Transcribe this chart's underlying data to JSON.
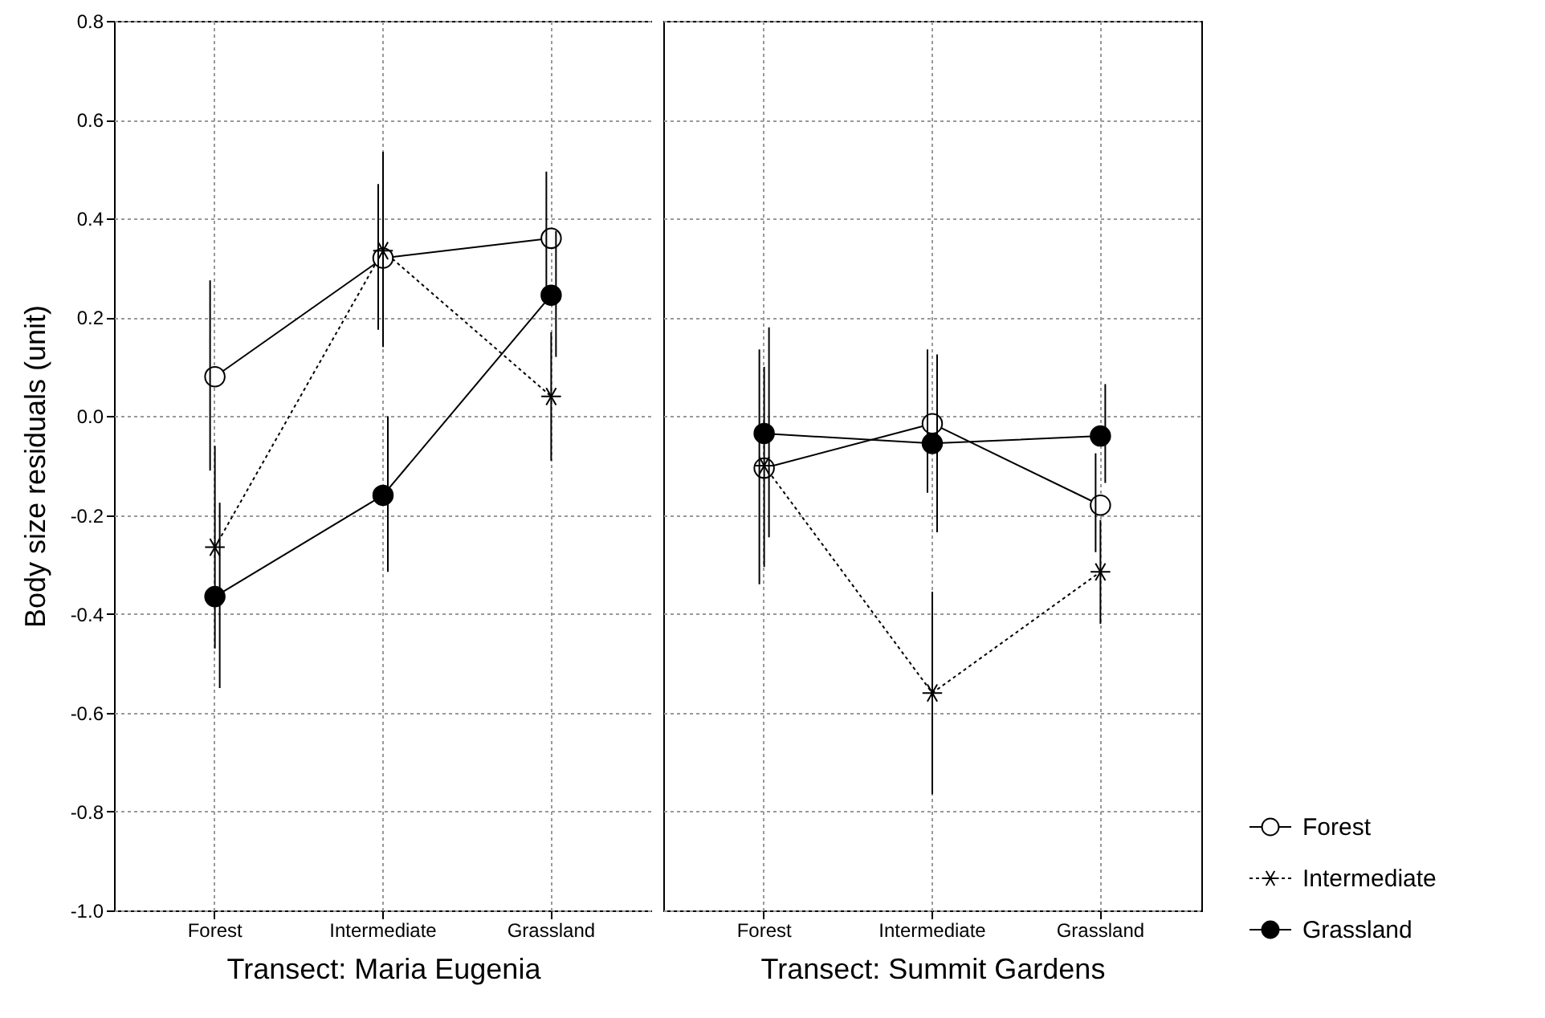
{
  "chart_data": [
    {
      "type": "line",
      "xlabel": "Transect: Maria Eugenia",
      "ylabel": "Body size residuals (unit)",
      "categories": [
        "Forest",
        "Intermediate",
        "Grassland"
      ],
      "ylim": [
        -1.0,
        0.8
      ],
      "yticks": [
        {
          "value": -1,
          "label": "-1.0"
        },
        {
          "value": -0.8,
          "label": "-0.8"
        },
        {
          "value": -0.6,
          "label": "-0.6"
        },
        {
          "value": -0.4,
          "label": "-0.4"
        },
        {
          "value": -0.2,
          "label": "-0.2"
        },
        {
          "value": 0,
          "label": "0.0"
        },
        {
          "value": 0.2,
          "label": "0.2"
        },
        {
          "value": 0.4,
          "label": "0.4"
        },
        {
          "value": 0.6,
          "label": "0.6"
        },
        {
          "value": 0.8,
          "label": "0.8"
        }
      ],
      "grid": true,
      "series": [
        {
          "color": "#000000",
          "marker": "circle",
          "line_style": "solid",
          "values": [
            0.08,
            0.32,
            0.36
          ],
          "errors": [
            [
              -0.11,
              0.275
            ],
            [
              0.175,
              0.47
            ],
            [
              0.23,
              0.495
            ]
          ]
        },
        {
          "color": "#000000",
          "marker": "cross",
          "line_style": "dotted",
          "values": [
            -0.265,
            0.335,
            0.04
          ],
          "errors": [
            [
              -0.47,
              -0.06
            ],
            [
              0.14,
              0.535
            ],
            [
              -0.09,
              0.17
            ]
          ]
        },
        {
          "color": "#000000",
          "marker": "circle",
          "line_style": "solid",
          "values": [
            -0.365,
            -0.16,
            0.245
          ],
          "errors": [
            [
              -0.55,
              -0.175
            ],
            [
              -0.315,
              0.0
            ],
            [
              0.12,
              0.375
            ]
          ]
        }
      ]
    },
    {
      "type": "line",
      "xlabel": "Transect: Summit Gardens",
      "categories": [
        "Forest",
        "Intermediate",
        "Grassland"
      ],
      "ylim": [
        -1.0,
        0.8
      ],
      "yticks": [
        -1,
        -0.8,
        -0.6,
        -0.4,
        -0.2,
        0,
        0.2,
        0.4,
        0.6,
        0.8
      ],
      "grid": true,
      "legend": "bottom right",
      "tick_labels": "x",
      "series": [
        {
          "name": "Forest",
          "color": "#000000",
          "marker": "circle",
          "line_style": "solid",
          "values": [
            -0.105,
            -0.015,
            -0.18
          ],
          "errors": [
            [
              -0.34,
              0.135
            ],
            [
              -0.155,
              0.135
            ],
            [
              -0.275,
              -0.075
            ]
          ]
        },
        {
          "name": "Intermediate",
          "color": "#000000",
          "marker": "cross",
          "line_style": "dotted",
          "values": [
            -0.1,
            -0.56,
            -0.315
          ],
          "errors": [
            [
              -0.305,
              0.1
            ],
            [
              -0.765,
              -0.355
            ],
            [
              -0.42,
              -0.21
            ]
          ]
        },
        {
          "name": "Grassland",
          "color": "#000000",
          "marker": "circle",
          "line_style": "solid",
          "values": [
            -0.035,
            -0.055,
            -0.04
          ],
          "errors": [
            [
              -0.245,
              0.18
            ],
            [
              -0.235,
              0.125
            ],
            [
              -0.135,
              0.065
            ]
          ]
        }
      ]
    }
  ]
}
